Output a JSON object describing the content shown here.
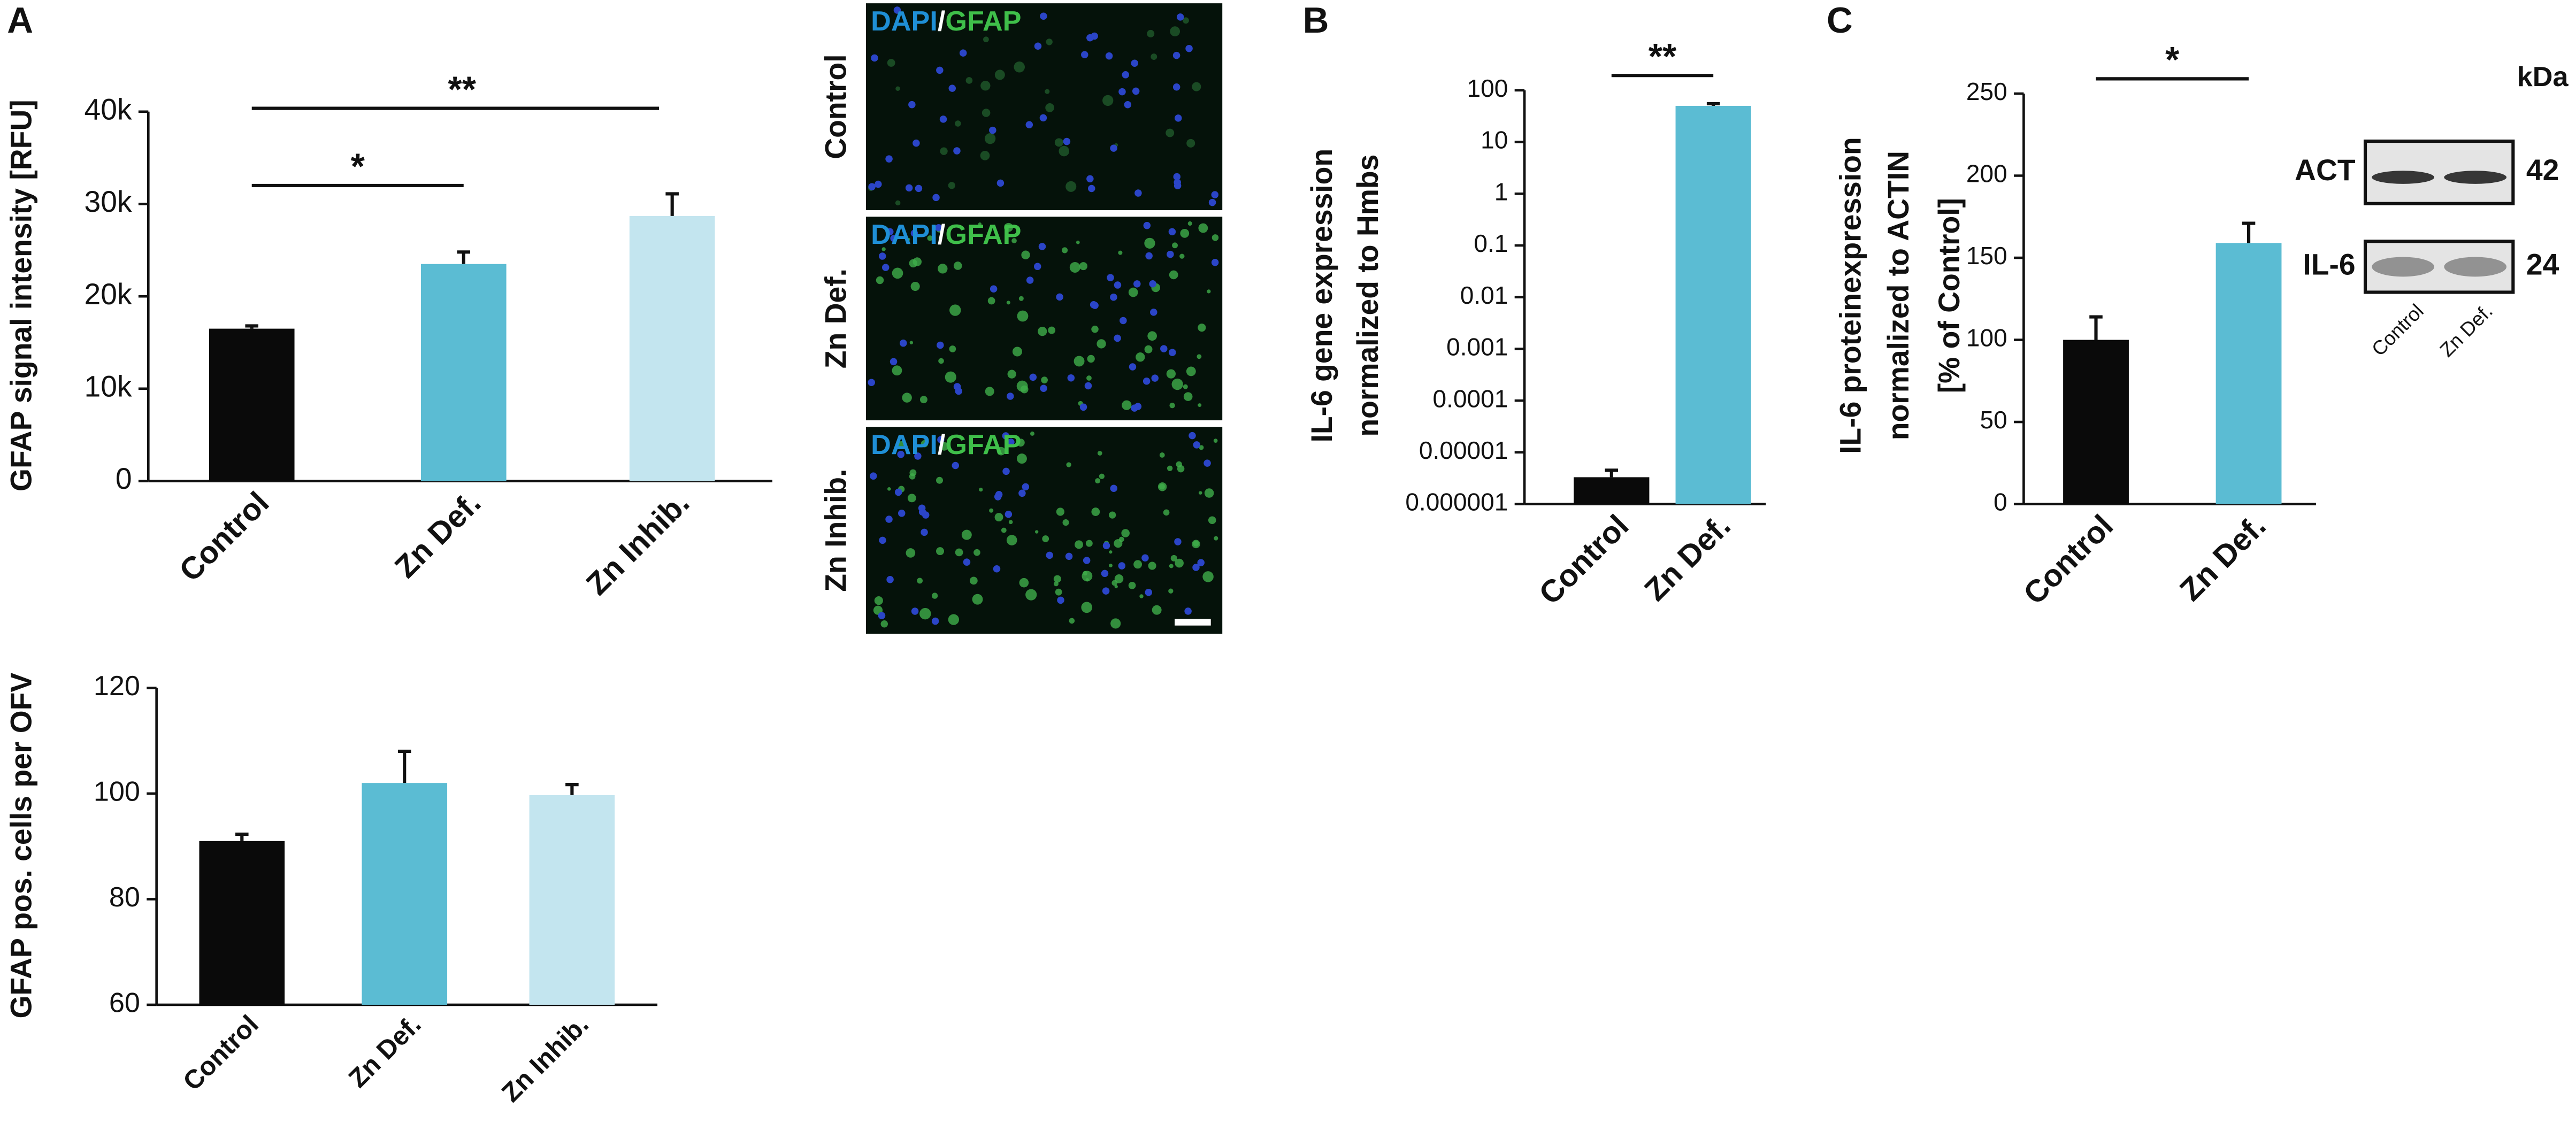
{
  "panel_labels": [
    "A",
    "B",
    "C"
  ],
  "chart_data": [
    {
      "type": "bar",
      "ylabel": [
        "GFAP signal intensity [RFU]"
      ],
      "categories": [
        "Control",
        "Zn Def.",
        "Zn Inhib."
      ],
      "values": [
        16500,
        23500,
        28700
      ],
      "errors": [
        300,
        1300,
        2400
      ],
      "colors": [
        "#0a0a0a",
        "#5bbcd3",
        "#c3e5ef"
      ],
      "ylim": [
        0,
        40000
      ],
      "yticks": [
        0,
        {
          "value": 10000,
          "label": "10k"
        },
        {
          "value": 20000,
          "label": "20k"
        },
        {
          "value": 30000,
          "label": "30k"
        },
        {
          "value": 40000,
          "label": "40k"
        }
      ],
      "significance": [
        {
          "label": "**",
          "categories": [
            "Control",
            "Zn Inhib."
          ]
        },
        {
          "label": "*",
          "categories": [
            "Control",
            "Zn Def."
          ]
        }
      ]
    },
    {
      "type": "bar",
      "ylabel": [
        "GFAP pos. cells per OFV"
      ],
      "categories": [
        "Control",
        "Zn Def.",
        "Zn Inhib."
      ],
      "values": [
        91,
        102,
        99.7
      ],
      "errors": [
        1.3,
        6,
        2
      ],
      "colors": [
        "#0a0a0a",
        "#5bbcd3",
        "#c3e5ef"
      ],
      "ylim": [
        60,
        120
      ],
      "yticks": [
        60,
        80,
        100,
        120
      ]
    },
    {
      "type": "bar",
      "log_scale": true,
      "ylabel": [
        "IL-6 gene expression",
        "normalized to Hmbs"
      ],
      "categories": [
        "Control",
        "Zn Def."
      ],
      "values": [
        3.3e-06,
        50
      ],
      "errors": [
        1.2e-06,
        5
      ],
      "colors": [
        "#0a0a0a",
        "#5bbcd3"
      ],
      "ylim": [
        1e-06,
        100
      ],
      "yticks": [
        1e-06,
        1e-05,
        0.0001,
        0.001,
        0.01,
        0.1,
        1,
        10,
        100
      ],
      "significance": [
        {
          "label": "**",
          "categories": [
            "Control",
            "Zn Def."
          ]
        }
      ]
    },
    {
      "type": "bar",
      "ylabel": [
        "IL-6 proteinexpression",
        "normalized to ACTIN",
        "[% of Control]"
      ],
      "categories": [
        "Control",
        "Zn Def."
      ],
      "values": [
        100,
        159
      ],
      "errors": [
        14,
        12
      ],
      "colors": [
        "#0a0a0a",
        "#5bbcd3"
      ],
      "ylim": [
        0,
        250
      ],
      "yticks": [
        0,
        50,
        100,
        150,
        200,
        250
      ],
      "significance": [
        {
          "label": "*",
          "categories": [
            "Control",
            "Zn Def."
          ]
        }
      ]
    }
  ],
  "micrographs": {
    "stain": [
      "DAPI",
      "/",
      "GFAP"
    ],
    "rows": [
      "Control",
      "Zn Def.",
      "Zn Inhib."
    ]
  },
  "blot": {
    "unit": "kDa",
    "bands": [
      {
        "name": "ACT",
        "size": "42"
      },
      {
        "name": "IL-6",
        "size": "24"
      }
    ],
    "lanes": [
      "Control",
      "Zn Def."
    ]
  }
}
